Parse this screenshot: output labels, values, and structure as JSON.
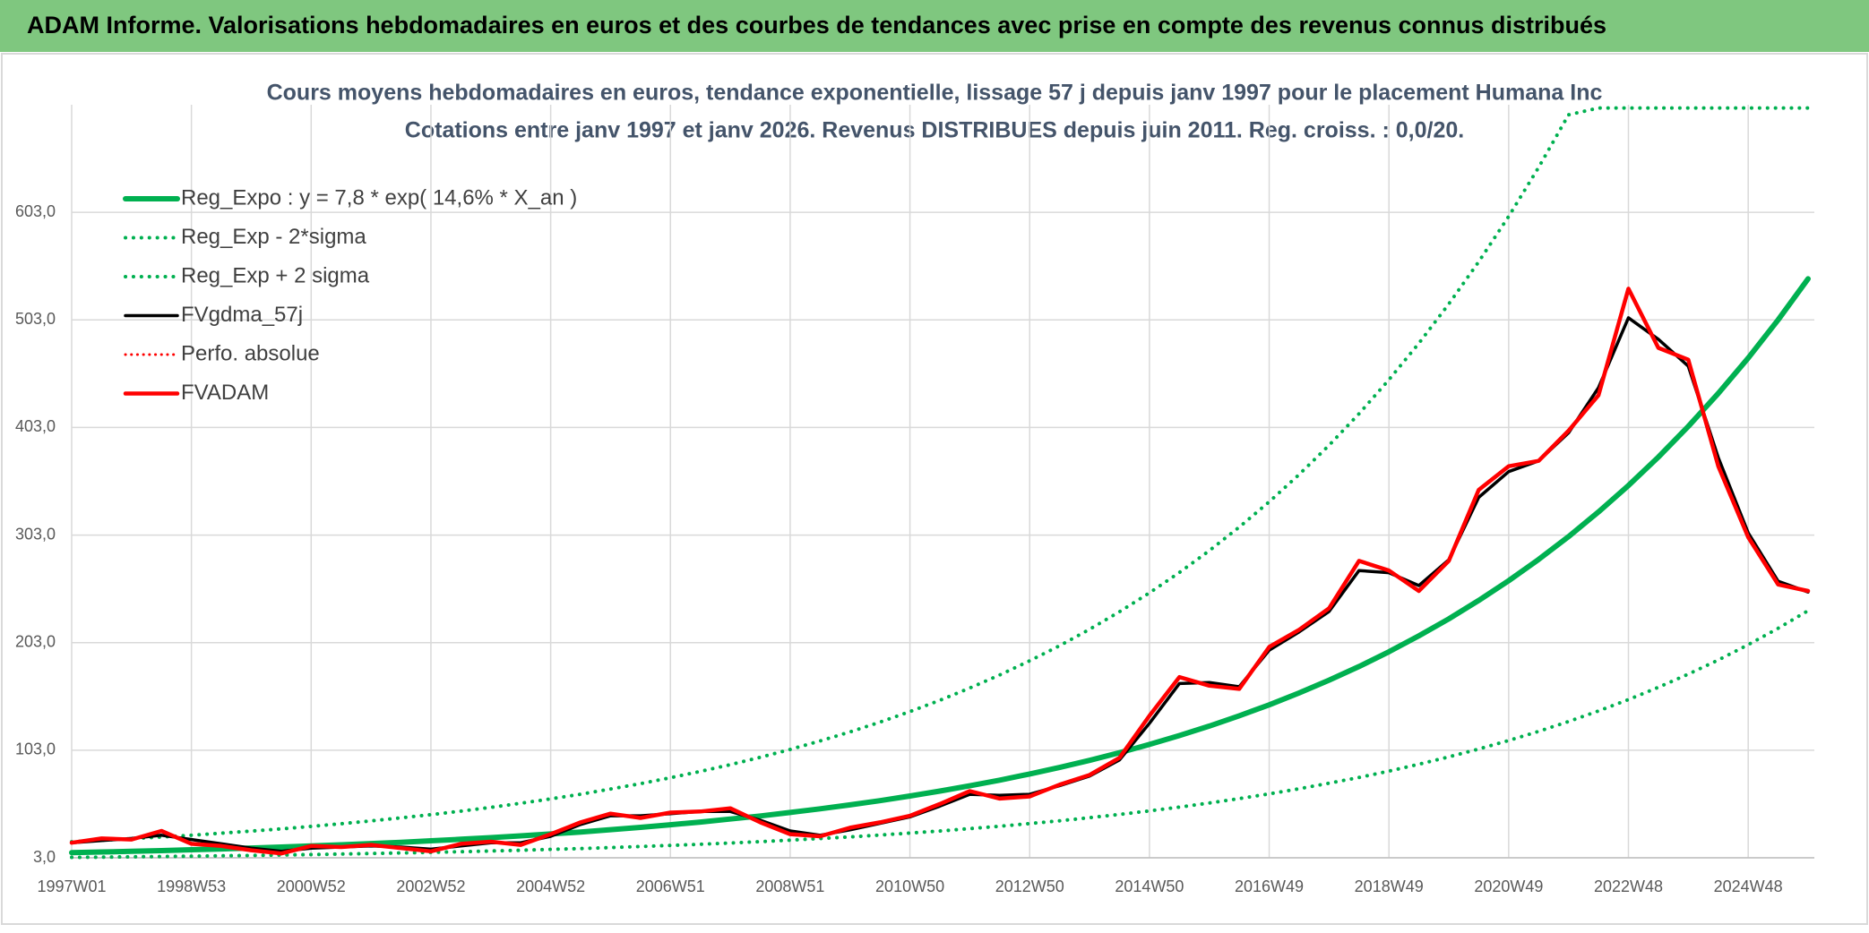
{
  "header": {
    "title": "ADAM Informe. Valorisations hebdomadaires en euros et des courbes de tendances avec prise en compte des revenus connus distribués"
  },
  "chart_data": {
    "type": "line",
    "title": "Cours moyens hebdomadaires en euros, tendance exponentielle, lissage 57 j depuis janv 1997 pour le placement Humana Inc",
    "subtitle": "Cotations entre janv 1997 et janv 2026. Revenus DISTRIBUES depuis juin 2011. Reg. croiss. : 0,0/20.",
    "categories": [
      "1997W01",
      null,
      null,
      null,
      "1998W53",
      null,
      null,
      null,
      "2000W52",
      null,
      null,
      null,
      "2002W52",
      null,
      null,
      null,
      "2004W52",
      null,
      null,
      null,
      "2006W51",
      null,
      null,
      null,
      "2008W51",
      null,
      null,
      null,
      "2010W50",
      null,
      null,
      null,
      "2012W50",
      null,
      null,
      null,
      "2014W50",
      null,
      null,
      null,
      "2016W49",
      null,
      null,
      null,
      "2018W49",
      null,
      null,
      null,
      "2020W49",
      null,
      null,
      null,
      "2022W48",
      null,
      null,
      null,
      "2024W48",
      null,
      null
    ],
    "ylim": [
      3,
      703
    ],
    "yticks": [
      {
        "value": 3,
        "label": "3,0"
      },
      {
        "value": 103,
        "label": "103,0"
      },
      {
        "value": 203,
        "label": "203,0"
      },
      {
        "value": 303,
        "label": "303,0"
      },
      {
        "value": 403,
        "label": "403,0"
      },
      {
        "value": 503,
        "label": "503,0"
      },
      {
        "value": 603,
        "label": "603,0"
      }
    ],
    "grid": true,
    "legend": "top-left",
    "series": [
      {
        "name": "Reg_Expo : y = 7,8 * exp( 14,6% *  X_an )",
        "color": "#00b050",
        "style": "solid",
        "values": [
          7.8,
          8.4,
          9.0,
          9.7,
          10.5,
          11.2,
          12.1,
          13.0,
          14.0,
          15.1,
          16.2,
          17.4,
          18.8,
          20.2,
          21.7,
          23.4,
          25.1,
          27.0,
          29.1,
          31.3,
          33.7,
          36.2,
          39.0,
          41.9,
          45.1,
          48.5,
          52.2,
          56.1,
          60.4,
          65.0,
          69.9,
          75.2,
          80.9,
          87.0,
          93.6,
          100.7,
          108.4,
          116.6,
          125.4,
          135.0,
          145.2,
          156.2,
          168.1,
          180.8,
          194.5,
          209.3,
          225.1,
          242.2,
          260.6,
          280.3,
          301.6,
          324.5,
          349.1,
          375.5,
          404.0,
          434.7,
          467.6,
          503.1,
          541.2
        ]
      },
      {
        "name": "Reg_Exp - 2*sigma",
        "color": "#00b050",
        "style": "dotted",
        "values": [
          3.4,
          3.6,
          3.9,
          4.2,
          4.5,
          4.8,
          5.2,
          5.6,
          6.0,
          6.5,
          7.0,
          7.5,
          8.1,
          8.7,
          9.3,
          10.0,
          10.8,
          11.6,
          12.5,
          13.5,
          14.5,
          15.6,
          16.7,
          18.0,
          19.4,
          20.9,
          22.4,
          24.1,
          26.0,
          27.9,
          30.1,
          32.3,
          34.8,
          37.4,
          40.3,
          43.3,
          46.6,
          50.1,
          53.9,
          58.0,
          62.4,
          67.2,
          72.3,
          77.7,
          83.6,
          90.0,
          96.8,
          104.1,
          112.0,
          120.5,
          129.7,
          139.5,
          150.1,
          161.5,
          173.7,
          186.9,
          201.1,
          216.3,
          232.7
        ]
      },
      {
        "name": "Reg_Exp + 2 sigma",
        "color": "#00b050",
        "style": "dotted",
        "values": [
          17.9,
          19.3,
          20.8,
          22.3,
          24.0,
          25.9,
          27.8,
          29.9,
          32.2,
          34.6,
          37.3,
          40.1,
          43.1,
          46.4,
          49.9,
          53.7,
          57.8,
          62.1,
          66.9,
          71.9,
          77.4,
          83.3,
          89.6,
          96.4,
          103.7,
          111.6,
          120.0,
          129.1,
          138.9,
          149.4,
          160.8,
          173.0,
          186.1,
          200.2,
          215.4,
          231.7,
          249.3,
          268.2,
          288.5,
          310.4,
          333.9,
          359.3,
          386.5,
          415.8,
          447.4,
          481.3,
          517.8,
          557.1,
          599.3,
          644.8,
          693.7,
          700,
          700,
          700,
          700,
          700,
          700,
          700,
          700
        ]
      },
      {
        "name": "FVgdma_57j",
        "color": "#000000",
        "style": "solid",
        "values": [
          17,
          19,
          21,
          24,
          20,
          16,
          12,
          9,
          12,
          13,
          14,
          13,
          11,
          14,
          17,
          17,
          23,
          34,
          42,
          42,
          44,
          46,
          46,
          38,
          28,
          24,
          29,
          35,
          41,
          51,
          62,
          61,
          62,
          70,
          79,
          94,
          128,
          165,
          166,
          162,
          196,
          213,
          232,
          270,
          268,
          256,
          280,
          338,
          362,
          372,
          398,
          440,
          505,
          485,
          460,
          375,
          305,
          260,
          250
        ]
      },
      {
        "name": "Perfo. absolue",
        "color": "#ff0000",
        "style": "dotted",
        "values": [
          null,
          null,
          null,
          null,
          null,
          null,
          null,
          null,
          null,
          null,
          null,
          null,
          null,
          null,
          null,
          null,
          null,
          null,
          null,
          null,
          null,
          null,
          null,
          null,
          null,
          null,
          null,
          null,
          null,
          null,
          null,
          null,
          null,
          null,
          null,
          null,
          null,
          null,
          null,
          null,
          null,
          null,
          null,
          null,
          null,
          null,
          null,
          null,
          null,
          null,
          null,
          null,
          null,
          null,
          null,
          null,
          null,
          null,
          null
        ]
      },
      {
        "name": "FVADAM",
        "color": "#ff0000",
        "style": "solid",
        "values": [
          17,
          21,
          20,
          28,
          16,
          14,
          10,
          7,
          14,
          13,
          15,
          12,
          9,
          16,
          18,
          15,
          25,
          36,
          44,
          40,
          45,
          46,
          49,
          36,
          25,
          23,
          31,
          36,
          42,
          53,
          65,
          58,
          60,
          71,
          80,
          96,
          135,
          171,
          163,
          160,
          199,
          215,
          235,
          279,
          270,
          251,
          279,
          345,
          367,
          372,
          400,
          433,
          532,
          477,
          466,
          367,
          301,
          257,
          251
        ]
      }
    ]
  }
}
